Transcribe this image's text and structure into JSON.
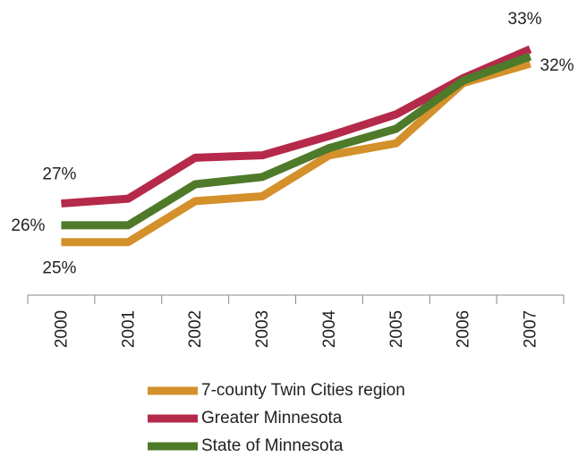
{
  "chart_data": {
    "type": "line",
    "categories": [
      "2000",
      "2001",
      "2002",
      "2003",
      "2004",
      "2005",
      "2006",
      "2007"
    ],
    "series": [
      {
        "name": "7-county Twin Cities region",
        "color": "#d4902a",
        "values": [
          24.9,
          24.9,
          26.6,
          26.8,
          28.5,
          29.0,
          31.5,
          32.3
        ],
        "value_labels": [
          "25%",
          null,
          null,
          null,
          null,
          null,
          null,
          "32%"
        ]
      },
      {
        "name": "Greater Minnesota",
        "color": "#b5294a",
        "values": [
          26.5,
          26.7,
          28.4,
          28.5,
          29.3,
          30.2,
          31.7,
          32.9
        ],
        "value_labels": [
          "27%",
          null,
          null,
          null,
          null,
          null,
          null,
          "33%"
        ]
      },
      {
        "name": "State of Minnesota",
        "color": "#4e7a2a",
        "values": [
          25.6,
          25.6,
          27.3,
          27.6,
          28.8,
          29.6,
          31.6,
          32.6
        ],
        "value_labels": [
          "26%",
          null,
          null,
          null,
          null,
          null,
          null,
          null
        ]
      }
    ],
    "ylim": [
      22.7,
      34.2
    ]
  }
}
